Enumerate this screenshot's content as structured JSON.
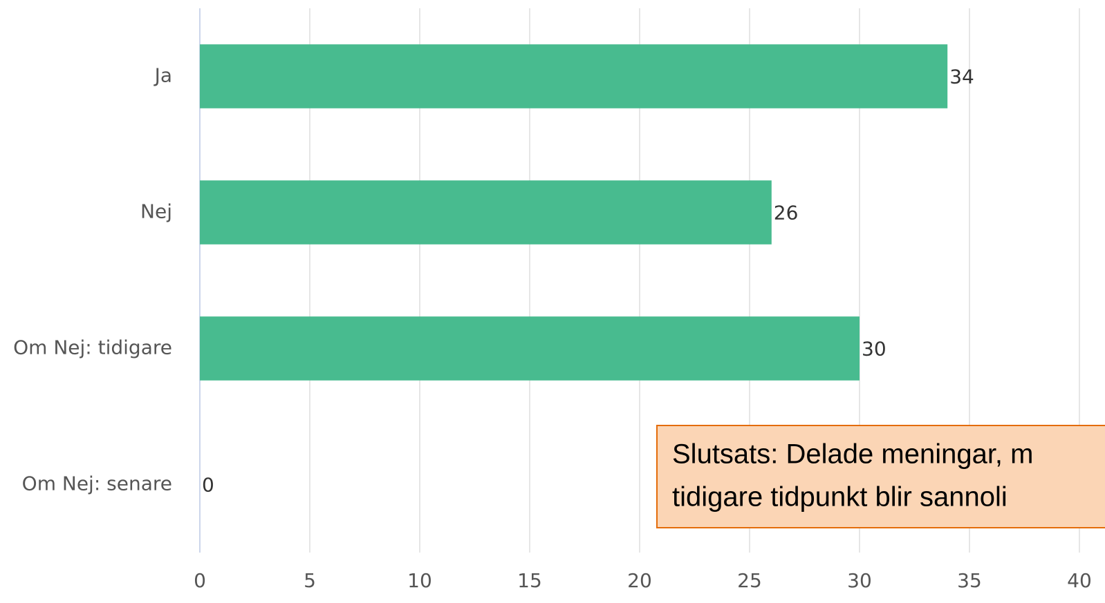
{
  "chart_data": {
    "type": "bar",
    "orientation": "horizontal",
    "categories": [
      "Ja",
      "Nej",
      "Om Nej: tidigare",
      "Om Nej: senare"
    ],
    "values": [
      34,
      26,
      30,
      0
    ],
    "color": "#48bb8f",
    "xlim": [
      0,
      40
    ],
    "xticks": [
      0,
      5,
      10,
      15,
      20,
      25,
      30,
      35,
      40
    ],
    "grid": true,
    "annotation": [
      "Slutsats: Delade meningar, m",
      "tidigare tidpunkt blir sannoli"
    ]
  }
}
